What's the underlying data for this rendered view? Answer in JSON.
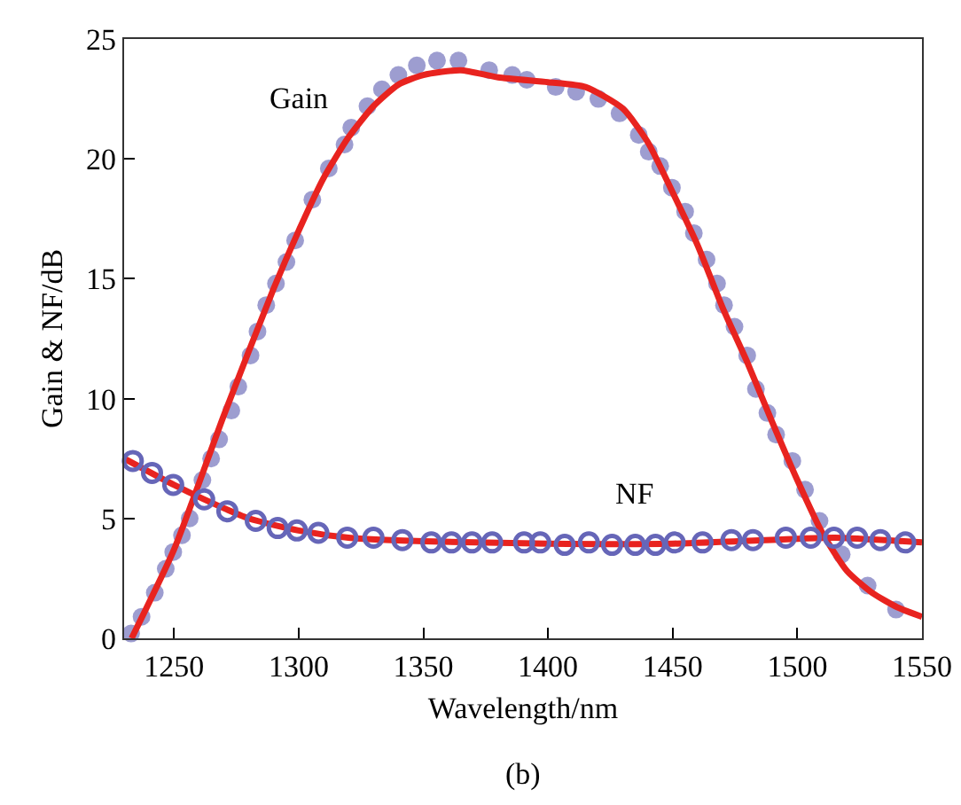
{
  "chart_data": {
    "type": "scatter",
    "xlabel": "Wavelength/nm",
    "ylabel": "Gain & NF/dB",
    "xlim": [
      1230,
      1550
    ],
    "xticks": [
      1250,
      1300,
      1350,
      1400,
      1450,
      1500,
      1550
    ],
    "ylim": [
      0,
      25
    ],
    "yticks": [
      0,
      5,
      10,
      15,
      20,
      25
    ],
    "grid": false,
    "series": [
      {
        "type": "scatter",
        "marker": "circle",
        "color": "#8c8cc8",
        "x": [
          1232.8,
          1237,
          1242.3,
          1246.7,
          1249.7,
          1253.2,
          1256.3,
          1261.4,
          1264.9,
          1268.1,
          1273,
          1275.8,
          1280.7,
          1283.5,
          1287,
          1290.9,
          1295.1,
          1298.6,
          1305.5,
          1312.1,
          1318.4,
          1321.1,
          1327.6,
          1333.4,
          1340,
          1347.4,
          1355.5,
          1364.1,
          1376.4,
          1385.7,
          1391.5,
          1403.1,
          1411.3,
          1420.2,
          1428.7,
          1436.4,
          1440.4,
          1445,
          1449.7,
          1455,
          1458.5,
          1463.6,
          1467.8,
          1470.6,
          1474.8,
          1479.9,
          1483.4,
          1488,
          1491.5,
          1498,
          1503.1,
          1508.9,
          1517.8,
          1528.2,
          1539.6
        ],
        "values": [
          0.2,
          0.9,
          1.9,
          2.9,
          3.6,
          4.3,
          5.0,
          6.6,
          7.5,
          8.3,
          9.5,
          10.5,
          11.8,
          12.8,
          13.9,
          14.8,
          15.7,
          16.6,
          18.3,
          19.6,
          20.6,
          21.3,
          22.2,
          22.9,
          23.5,
          23.9,
          24.1,
          24.1,
          23.7,
          23.5,
          23.3,
          23.0,
          22.8,
          22.5,
          21.9,
          21.0,
          20.3,
          19.7,
          18.8,
          17.8,
          16.9,
          15.8,
          14.8,
          13.9,
          13.0,
          11.8,
          10.4,
          9.4,
          8.5,
          7.4,
          6.2,
          4.9,
          3.5,
          2.2,
          1.2
        ]
      },
      {
        "type": "line",
        "marker": "none",
        "color": "#e8231f",
        "x": [
          1233,
          1250,
          1270,
          1290,
          1300,
          1310,
          1320,
          1330,
          1340,
          1350,
          1365,
          1380,
          1400,
          1415,
          1430,
          1440,
          1450,
          1460,
          1470,
          1480,
          1490,
          1500,
          1510,
          1520,
          1530,
          1540,
          1550
        ],
        "values": [
          0,
          3.7,
          9.3,
          14.6,
          17,
          19.2,
          20.9,
          22.2,
          23.1,
          23.5,
          23.7,
          23.4,
          23.2,
          23.0,
          22.1,
          20.7,
          18.6,
          16.4,
          13.8,
          11.5,
          9.0,
          6.6,
          4.4,
          2.8,
          1.9,
          1.3,
          0.9
        ]
      },
      {
        "type": "line",
        "marker": "none",
        "color": "#e8231f",
        "x": [
          1230,
          1250,
          1262,
          1280,
          1300,
          1320,
          1350,
          1400,
          1450,
          1500,
          1515,
          1550
        ],
        "values": [
          7.5,
          6.4,
          5.8,
          5.0,
          4.5,
          4.2,
          4.05,
          3.95,
          3.95,
          4.15,
          4.2,
          4.0
        ]
      },
      {
        "type": "scatter",
        "marker": "circle-open",
        "color": "#6666b8",
        "x": [
          1233.5,
          1241.2,
          1249.7,
          1262.1,
          1271.4,
          1282.8,
          1291.6,
          1299.3,
          1307.9,
          1319.5,
          1330,
          1341.6,
          1353.2,
          1361.3,
          1369.5,
          1377.6,
          1390.4,
          1396.9,
          1406.7,
          1416.4,
          1425.7,
          1435,
          1443.1,
          1450.8,
          1462,
          1473.6,
          1482.2,
          1495.4,
          1505.4,
          1514.7,
          1524,
          1533.3,
          1543.3
        ],
        "values": [
          7.4,
          6.9,
          6.4,
          5.8,
          5.3,
          4.9,
          4.6,
          4.5,
          4.4,
          4.2,
          4.2,
          4.1,
          4.0,
          4.0,
          4.0,
          4.0,
          4.0,
          4.0,
          3.9,
          4.0,
          3.9,
          3.9,
          3.9,
          4.0,
          4.0,
          4.1,
          4.1,
          4.2,
          4.2,
          4.2,
          4.2,
          4.1,
          4.0
        ]
      }
    ],
    "annotations": [
      "Gain",
      "NF",
      "(b)"
    ]
  }
}
